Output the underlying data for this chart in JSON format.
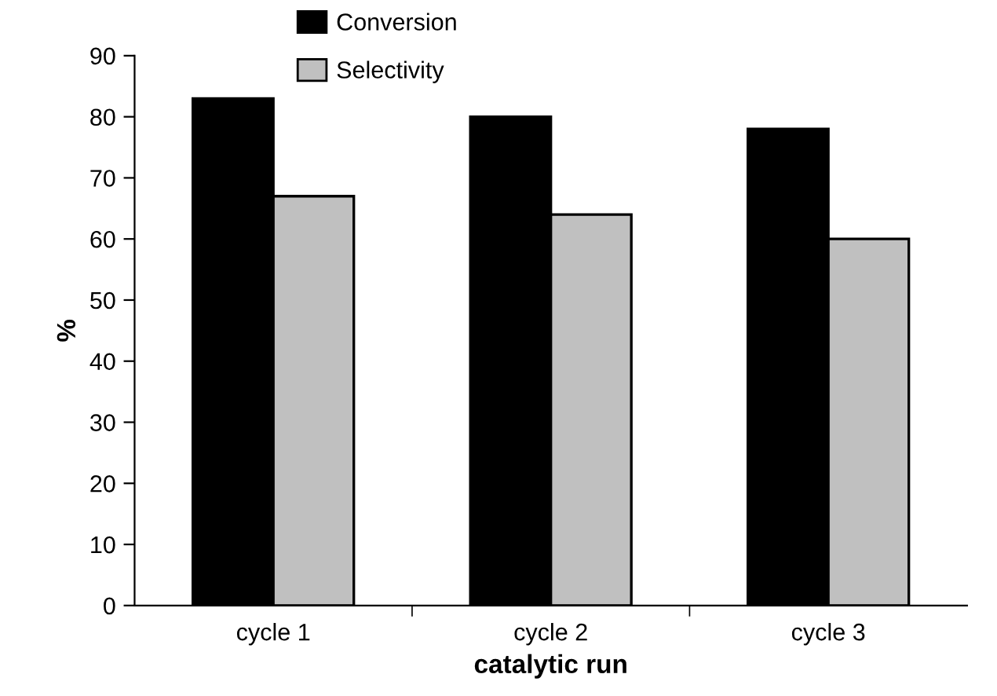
{
  "chart_data": {
    "type": "bar",
    "xlabel": "catalytic run",
    "ylabel": "%",
    "categories": [
      "cycle 1",
      "cycle 2",
      "cycle 3"
    ],
    "series": [
      {
        "name": "Conversion",
        "color": "#000000",
        "values": [
          83,
          80,
          78
        ]
      },
      {
        "name": "Selectivity",
        "color": "#c0c0c0",
        "values": [
          67,
          64,
          60
        ]
      }
    ],
    "ylim": [
      0,
      90
    ],
    "yticks": [
      0,
      10,
      20,
      30,
      40,
      50,
      60,
      70,
      80,
      90
    ],
    "grid": false,
    "legend": "top left"
  }
}
